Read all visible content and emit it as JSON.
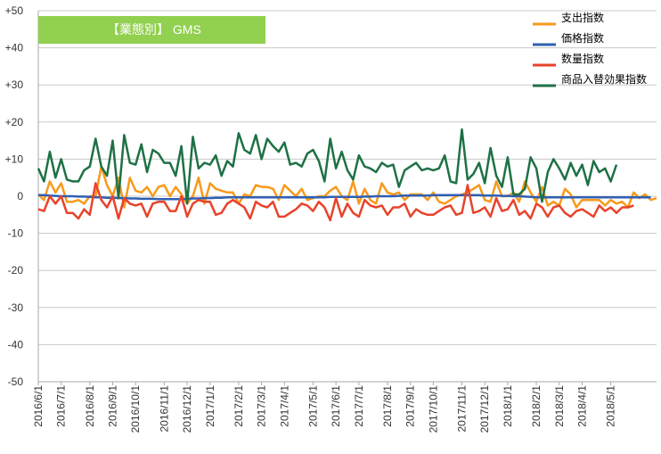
{
  "chart_data": {
    "type": "line",
    "title": "【業態別】 GMS",
    "xlabel": "",
    "ylabel": "",
    "ylim": [
      -50,
      50
    ],
    "y_ticks": [
      "+50",
      "+40",
      "+30",
      "+20",
      "+10",
      "0",
      "-10",
      "-20",
      "-30",
      "-40",
      "-50"
    ],
    "x_tick_labels": [
      "2016/6/1",
      "2016/7/1",
      "2016/8/1",
      "2016/9/1",
      "2016/10/1",
      "2016/11/1",
      "2016/12/1",
      "2017/1/1",
      "2017/2/1",
      "2017/3/1",
      "2017/4/1",
      "2017/5/1",
      "2017/6/1",
      "2017/7/1",
      "2017/8/1",
      "2017/9/1",
      "2017/10/1",
      "2017/11/1",
      "2017/12/1",
      "2018/1/1",
      "2018/2/1",
      "2018/3/1",
      "2018/4/1",
      "2018/5/1"
    ],
    "x_tick_index": [
      0,
      4,
      9,
      13,
      17,
      22,
      26,
      30,
      35,
      39,
      43,
      48,
      52,
      56,
      61,
      65,
      69,
      74,
      78,
      82,
      87,
      91,
      95,
      100
    ],
    "grid": true,
    "legend_position": "top-right",
    "title_box_color": "#92d050",
    "series": [
      {
        "name": "支出指数",
        "color": "#f79a1b",
        "values": [
          0.5,
          -1,
          4,
          1,
          3.5,
          -1.5,
          -1.5,
          -1,
          -2,
          0,
          0,
          8,
          3,
          0,
          5,
          -3,
          5,
          1.5,
          1,
          2.5,
          0,
          2.5,
          3,
          0,
          2.5,
          0.5,
          -2,
          0,
          5,
          -2,
          3.5,
          2,
          1.5,
          1,
          1,
          -2,
          0.5,
          0,
          3,
          2.5,
          2.5,
          2,
          -1,
          3,
          1.5,
          0,
          2,
          -1,
          -0.5,
          0,
          0,
          1.5,
          2.5,
          0,
          -1,
          4,
          -2,
          2,
          -1,
          -2,
          3.5,
          1,
          0.5,
          1,
          -1,
          0.5,
          0.5,
          0.5,
          -1,
          1,
          -1.5,
          -2,
          -1,
          0,
          0.5,
          1,
          2,
          3,
          -1,
          -1.5,
          4,
          0,
          0,
          1,
          -1.5,
          4,
          1,
          -1.5,
          2.5,
          -2.5,
          -1.5,
          -2.5,
          2,
          0.5,
          -3,
          -1,
          -1,
          -1,
          -1,
          -2.5,
          -1,
          -2,
          -1.5,
          -3,
          1,
          -0.5,
          0.5,
          -1,
          -0.5
        ]
      },
      {
        "name": "価格指数",
        "color": "#2f5fb3",
        "values": [
          0.3,
          0.3,
          0.2,
          0.1,
          0,
          0,
          0,
          -0.1,
          -0.1,
          -0.2,
          -0.3,
          -0.3,
          -0.4,
          -0.4,
          -0.5,
          -0.5,
          -0.6,
          -0.6,
          -0.7,
          -0.7,
          -0.7,
          -0.8,
          -0.8,
          -0.8,
          -0.8,
          -0.8,
          -0.7,
          -0.6,
          -0.6,
          -0.5,
          -0.5,
          -0.4,
          -0.4,
          -0.3,
          -0.3,
          -0.3,
          -0.3,
          -0.3,
          -0.3,
          -0.3,
          -0.3,
          -0.3,
          -0.3,
          -0.3,
          -0.3,
          -0.3,
          -0.3,
          -0.3,
          -0.3,
          -0.3,
          -0.3,
          -0.2,
          -0.2,
          -0.2,
          -0.2,
          -0.2,
          -0.2,
          -0.1,
          -0.1,
          0,
          0,
          0,
          0,
          0.1,
          0.2,
          0.2,
          0.2,
          0.2,
          0.2,
          0.3,
          0.3,
          0.3,
          0.3,
          0.3,
          0.3,
          0.3,
          0.3,
          0.3,
          0.2,
          0.2,
          0.2,
          0.1,
          0.1,
          0,
          0,
          -0.1,
          -0.2,
          -0.3,
          -0.3,
          -0.3,
          -0.3,
          -0.3,
          -0.3,
          -0.3,
          -0.3,
          -0.3,
          -0.3,
          -0.3,
          -0.3,
          -0.3,
          -0.3,
          -0.3,
          -0.3,
          -0.3,
          -0.3,
          -0.3,
          -0.3,
          -0.3
        ]
      },
      {
        "name": "数量指数",
        "color": "#e8432b",
        "values": [
          -3.5,
          -4,
          0,
          -2,
          0,
          -4.5,
          -4.5,
          -6,
          -3.5,
          -5,
          3.5,
          -1,
          -3,
          0,
          -6,
          -0.5,
          -2,
          -2.5,
          -2,
          -5.5,
          -2,
          -1.5,
          -1.5,
          -4,
          -4,
          0,
          -5.5,
          -2,
          -1,
          -1.5,
          -1.5,
          -5,
          -4.5,
          -2,
          -1,
          -2,
          -3,
          -6,
          -1.5,
          -2.5,
          -3,
          -1.5,
          -5.5,
          -5.5,
          -4.5,
          -3.5,
          -2,
          -2.5,
          -4,
          -1.5,
          -3,
          -6.5,
          -0.5,
          -5.5,
          -2,
          -4.5,
          -5.5,
          -1,
          -2.5,
          -3,
          -2.5,
          -5,
          -3,
          -3,
          -2,
          -5.5,
          -3.5,
          -4.5,
          -5,
          -5,
          -4,
          -3,
          -2.5,
          -5,
          -4.5,
          3,
          -4.5,
          -4,
          -3,
          -5.5,
          -0.5,
          -4,
          -3.5,
          -1,
          -5,
          -4,
          -6,
          -2,
          -3,
          -5.5,
          -3,
          -2.5,
          -4.5,
          -5.5,
          -4,
          -3.5,
          -4.5,
          -5.5,
          -2.5,
          -4,
          -3,
          -4.5,
          -3,
          -3,
          -2.5
        ]
      },
      {
        "name": "商品入替効果指数",
        "color": "#1e7145",
        "values": [
          7.5,
          4,
          12,
          5,
          10,
          4.5,
          4,
          4,
          7,
          8,
          15.5,
          8,
          5.5,
          15,
          -0.5,
          16.5,
          9,
          8.5,
          14,
          6.5,
          12.5,
          11.5,
          9,
          9,
          5.5,
          13.5,
          -2,
          16,
          7.5,
          9,
          8.5,
          11,
          5.5,
          9.5,
          8,
          17,
          12.5,
          11.5,
          16.5,
          10,
          15.5,
          13.5,
          12,
          14.5,
          8.5,
          9,
          8,
          11.5,
          12.5,
          9.5,
          4,
          15.5,
          7.5,
          12,
          7,
          4.5,
          11,
          8,
          7.5,
          6.5,
          9,
          8,
          8.5,
          2.5,
          7,
          8,
          9,
          7,
          7.5,
          7,
          7.5,
          11,
          4,
          3.5,
          18,
          4.5,
          6,
          9,
          3.5,
          13,
          5.5,
          2.5,
          10.5,
          0.5,
          0.5,
          2,
          10.5,
          7.5,
          -1.5,
          6.5,
          10,
          7.5,
          4.5,
          9,
          5.5,
          8.5,
          3,
          9.5,
          6.5,
          7.5,
          4,
          8.5
        ]
      }
    ]
  }
}
